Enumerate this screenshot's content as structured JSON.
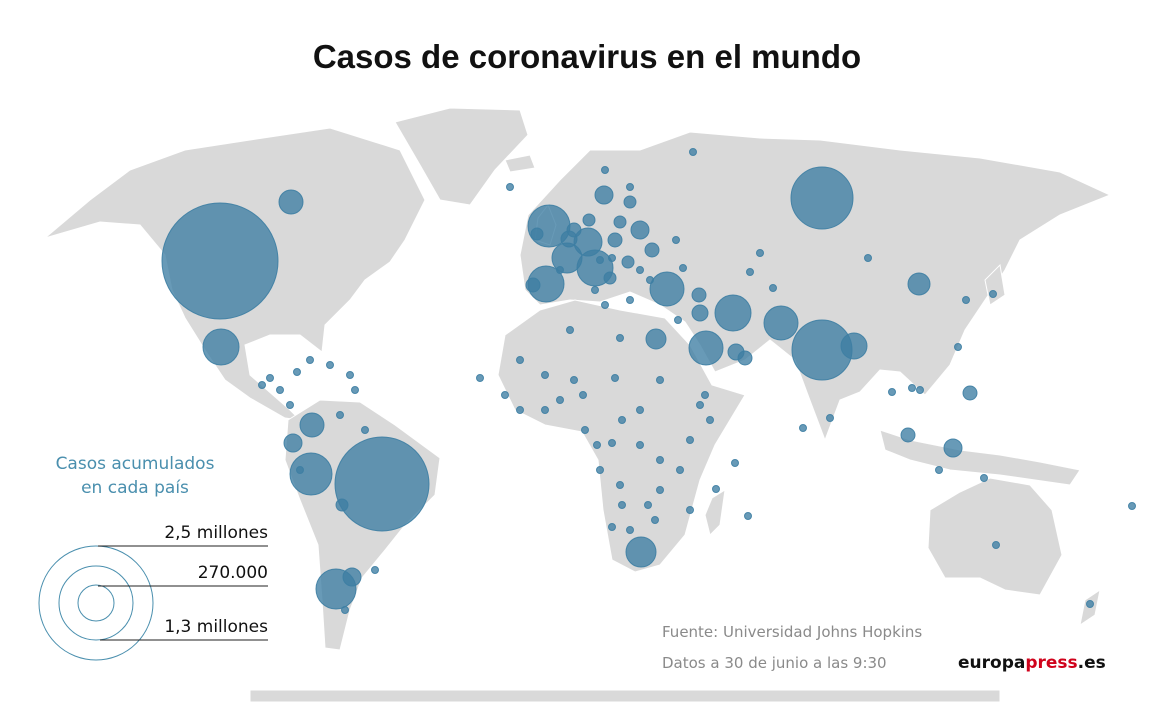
{
  "title": "Casos de coronavirus en el mundo",
  "legend": {
    "title_line1": "Casos acumulados",
    "title_line2": "en cada país",
    "labels": [
      "2,5 millones",
      "270.000",
      "1,3 millones"
    ]
  },
  "footer": {
    "source": "Fuente: Universidad Johns Hopkins",
    "date": "Datos a 30 de junio a las 9:30"
  },
  "brand": {
    "part1": "europa",
    "part2": "press",
    "part3": ".es"
  },
  "colors": {
    "land": "#d9d9d9",
    "bubble": "#3d7ea3",
    "legend": "#4a8fae",
    "brand_accent": "#d0021b"
  }
}
